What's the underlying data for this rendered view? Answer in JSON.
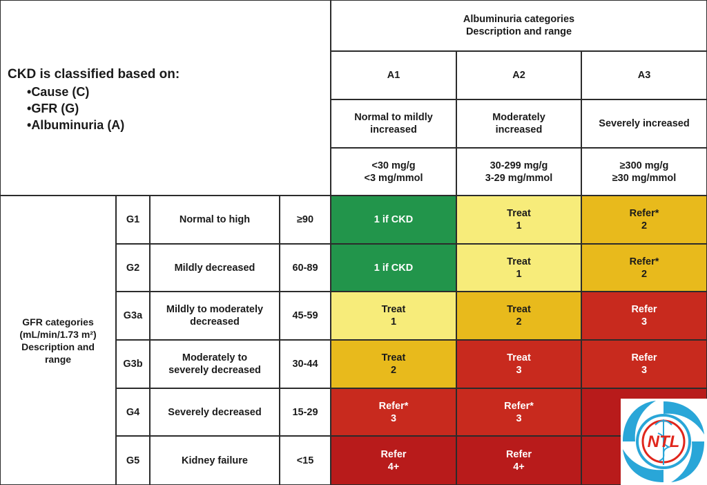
{
  "intro": {
    "lead": "CKD is classified based on:",
    "bullets": [
      "Cause (C)",
      "GFR (G)",
      "Albuminuria (A)"
    ]
  },
  "albuminuria_header": "Albuminuria categories\nDescription and range",
  "gfr_header": "GFR categories\n(mL/min/1.73 m²)\nDescription and\nrange",
  "a_columns": [
    {
      "code": "A1",
      "description": "Normal to mildly\nincreased",
      "range": "<30 mg/g\n<3 mg/mmol"
    },
    {
      "code": "A2",
      "description": "Moderately\nincreased",
      "range": "30-299 mg/g\n3-29 mg/mmol"
    },
    {
      "code": "A3",
      "description": "Severely increased",
      "range": "≥300 mg/g\n≥30 mg/mmol"
    }
  ],
  "g_rows": [
    {
      "code": "G1",
      "description": "Normal to high",
      "range": "≥90",
      "cells": [
        {
          "text": "1 if CKD",
          "color": "green"
        },
        {
          "text": "Treat\n1",
          "color": "yellow"
        },
        {
          "text": "Refer*\n2",
          "color": "amber"
        }
      ]
    },
    {
      "code": "G2",
      "description": "Mildly decreased",
      "range": "60-89",
      "cells": [
        {
          "text": "1 if CKD",
          "color": "green"
        },
        {
          "text": "Treat\n1",
          "color": "yellow"
        },
        {
          "text": "Refer*\n2",
          "color": "amber"
        }
      ]
    },
    {
      "code": "G3a",
      "description": "Mildly to moderately\ndecreased",
      "range": "45-59",
      "cells": [
        {
          "text": "Treat\n1",
          "color": "yellow"
        },
        {
          "text": "Treat\n2",
          "color": "amber"
        },
        {
          "text": "Refer\n3",
          "color": "red"
        }
      ]
    },
    {
      "code": "G3b",
      "description": "Moderately to\nseverely decreased",
      "range": "30-44",
      "cells": [
        {
          "text": "Treat\n2",
          "color": "amber"
        },
        {
          "text": "Treat\n3",
          "color": "red"
        },
        {
          "text": "Refer\n3",
          "color": "red"
        }
      ]
    },
    {
      "code": "G4",
      "description": "Severely decreased",
      "range": "15-29",
      "cells": [
        {
          "text": "Refer*\n3",
          "color": "red"
        },
        {
          "text": "Refer*\n3",
          "color": "red"
        },
        {
          "text": "",
          "color": "darkred"
        }
      ]
    },
    {
      "code": "G5",
      "description": "Kidney failure",
      "range": "<15",
      "cells": [
        {
          "text": "Refer\n4+",
          "color": "darkred"
        },
        {
          "text": "Refer\n4+",
          "color": "darkred"
        },
        {
          "text": "",
          "color": "darkred"
        }
      ]
    }
  ],
  "colors": {
    "green": "#22954b",
    "yellow": "#f7ec7a",
    "amber": "#e8ba1c",
    "red": "#c82a1e",
    "darkred": "#b81b1b",
    "logo_blue": "#29a6d8",
    "logo_red": "#e0261c"
  },
  "logo": {
    "text": "NTL",
    "icon": "caduceus-icon"
  }
}
